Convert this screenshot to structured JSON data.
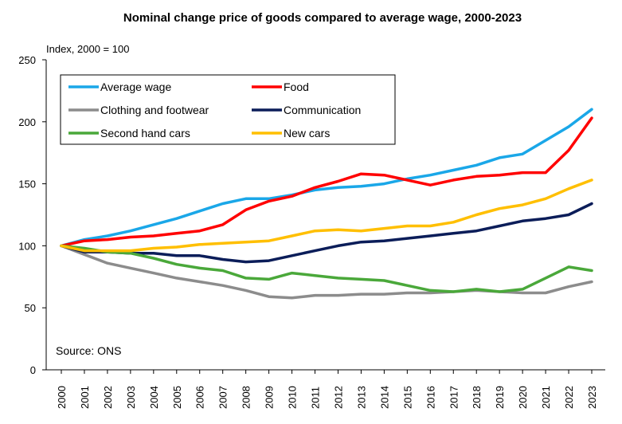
{
  "chart_data": {
    "type": "line",
    "title": "Nominal change price of goods compared to average wage, 2000-2023",
    "ylabel": "Index, 2000 = 100",
    "xlabel": "",
    "source": "Source: ONS",
    "ylim": [
      0,
      250
    ],
    "yticks": [
      0,
      50,
      100,
      150,
      200,
      250
    ],
    "legend_position": "top-left",
    "grid": false,
    "x": [
      "2000",
      "2001",
      "2002",
      "2003",
      "2004",
      "2005",
      "2006",
      "2007",
      "2008",
      "2009",
      "2010",
      "2011",
      "2012",
      "2013",
      "2014",
      "2015",
      "2016",
      "2017",
      "2018",
      "2019",
      "2020",
      "2021",
      "2022",
      "2023"
    ],
    "series": [
      {
        "name": "Average wage",
        "color": "#1aa7e8",
        "values": [
          100,
          105,
          108,
          112,
          117,
          122,
          128,
          134,
          138,
          138,
          141,
          145,
          147,
          148,
          150,
          154,
          157,
          161,
          165,
          171,
          174,
          185,
          196,
          210
        ]
      },
      {
        "name": "Food",
        "color": "#ff0000",
        "values": [
          100,
          104,
          105,
          107,
          108,
          110,
          112,
          117,
          129,
          136,
          140,
          147,
          152,
          158,
          157,
          153,
          149,
          153,
          156,
          157,
          159,
          159,
          177,
          203
        ]
      },
      {
        "name": "Clothing and footwear",
        "color": "#8c8c8c",
        "values": [
          100,
          93,
          86,
          82,
          78,
          74,
          71,
          68,
          64,
          59,
          58,
          60,
          60,
          61,
          61,
          62,
          62,
          63,
          64,
          63,
          62,
          62,
          67,
          71
        ]
      },
      {
        "name": "Communication",
        "color": "#0b1d59",
        "values": [
          100,
          95,
          95,
          94,
          94,
          92,
          92,
          89,
          87,
          88,
          92,
          96,
          100,
          103,
          104,
          106,
          108,
          110,
          112,
          116,
          120,
          122,
          125,
          134
        ]
      },
      {
        "name": "Second hand cars",
        "color": "#4aa83a",
        "values": [
          100,
          98,
          95,
          94,
          90,
          85,
          82,
          80,
          74,
          73,
          78,
          76,
          74,
          73,
          72,
          68,
          64,
          63,
          65,
          63,
          65,
          74,
          83,
          80
        ]
      },
      {
        "name": "New cars",
        "color": "#ffbf00",
        "values": [
          100,
          96,
          96,
          96,
          98,
          99,
          101,
          102,
          103,
          104,
          108,
          112,
          113,
          112,
          114,
          116,
          116,
          119,
          125,
          130,
          133,
          138,
          146,
          153
        ]
      }
    ]
  }
}
